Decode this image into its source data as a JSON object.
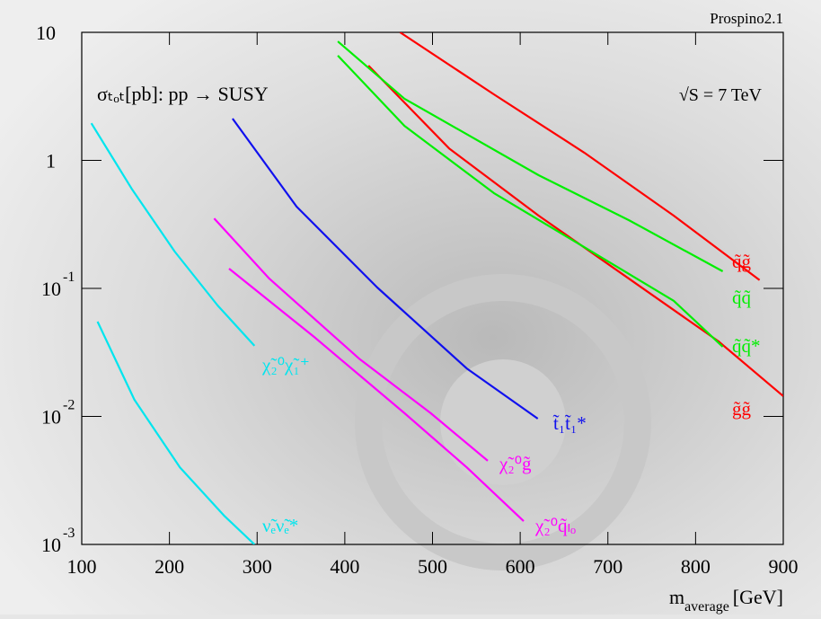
{
  "chart_data": {
    "type": "line",
    "title": "σₜₒₜ[pb]: pp → SUSY",
    "annotation": "√S = 7 TeV",
    "corner_label": "Prospino2.1",
    "x_label": {
      "main": "m",
      "sub": "average",
      "unit": "[GeV]"
    },
    "xlim": [
      100,
      900
    ],
    "xticks": [
      100,
      200,
      300,
      400,
      500,
      600,
      700,
      800,
      900
    ],
    "ylim": [
      0.001,
      10
    ],
    "log_y": true,
    "yticks": [
      {
        "value": 0.001,
        "label": "10",
        "exponent": "-3"
      },
      {
        "value": 0.01,
        "label": "10",
        "exponent": "-2"
      },
      {
        "value": 0.1,
        "label": "10",
        "exponent": "-1"
      },
      1,
      10
    ],
    "series": [
      {
        "name": "q̃g̃",
        "color": "#ff0000",
        "x": [
          463,
          570,
          673,
          775,
          873
        ],
        "values": [
          10,
          3.28,
          1.15,
          0.37,
          0.116
        ]
      },
      {
        "name": "g̃g̃",
        "color": "#ff0000",
        "x": [
          427,
          519,
          621,
          724,
          826,
          900
        ],
        "values": [
          5.5,
          1.24,
          0.37,
          0.119,
          0.0386,
          0.0144
        ]
      },
      {
        "name": "q̃q̃",
        "color": "#00ee00",
        "x": [
          392,
          468,
          621,
          724,
          831
        ],
        "values": [
          8.5,
          3.03,
          0.766,
          0.341,
          0.136
        ]
      },
      {
        "name": "q̃q̃*",
        "color": "#00ee00",
        "x": [
          392,
          468,
          570,
          673,
          775,
          831
        ],
        "values": [
          6.58,
          1.86,
          0.555,
          0.21,
          0.08,
          0.035
        ]
      },
      {
        "name": "t̃₁t̃₁*",
        "color": "#1010ee",
        "x": [
          272,
          345,
          437,
          539,
          620
        ],
        "values": [
          2.12,
          0.435,
          0.1017,
          0.0237,
          0.0096
        ]
      },
      {
        "name": "χ̃₂⁰g̃",
        "color": "#ff00ff",
        "x": [
          251,
          314,
          417,
          498,
          563
        ],
        "values": [
          0.352,
          0.119,
          0.028,
          0.0106,
          0.0045
        ]
      },
      {
        "name": "χ̃₂⁰q̃ₗₒ",
        "color": "#ff00ff",
        "x": [
          268,
          365,
          468,
          539,
          604
        ],
        "values": [
          0.1426,
          0.0418,
          0.0106,
          0.004,
          0.00152
        ]
      },
      {
        "name": "χ̃₂⁰χ̃₁⁺",
        "color": "#00e5ee",
        "x": [
          111,
          157,
          206,
          255,
          297
        ],
        "values": [
          1.95,
          0.6,
          0.194,
          0.0736,
          0.0356
        ]
      },
      {
        "name": "ν̃ₑν̃ₑ*",
        "color": "#00e5ee",
        "x": [
          118,
          160,
          212,
          263,
          297
        ],
        "values": [
          0.055,
          0.0135,
          0.004,
          0.00166,
          0.001
        ]
      }
    ]
  }
}
